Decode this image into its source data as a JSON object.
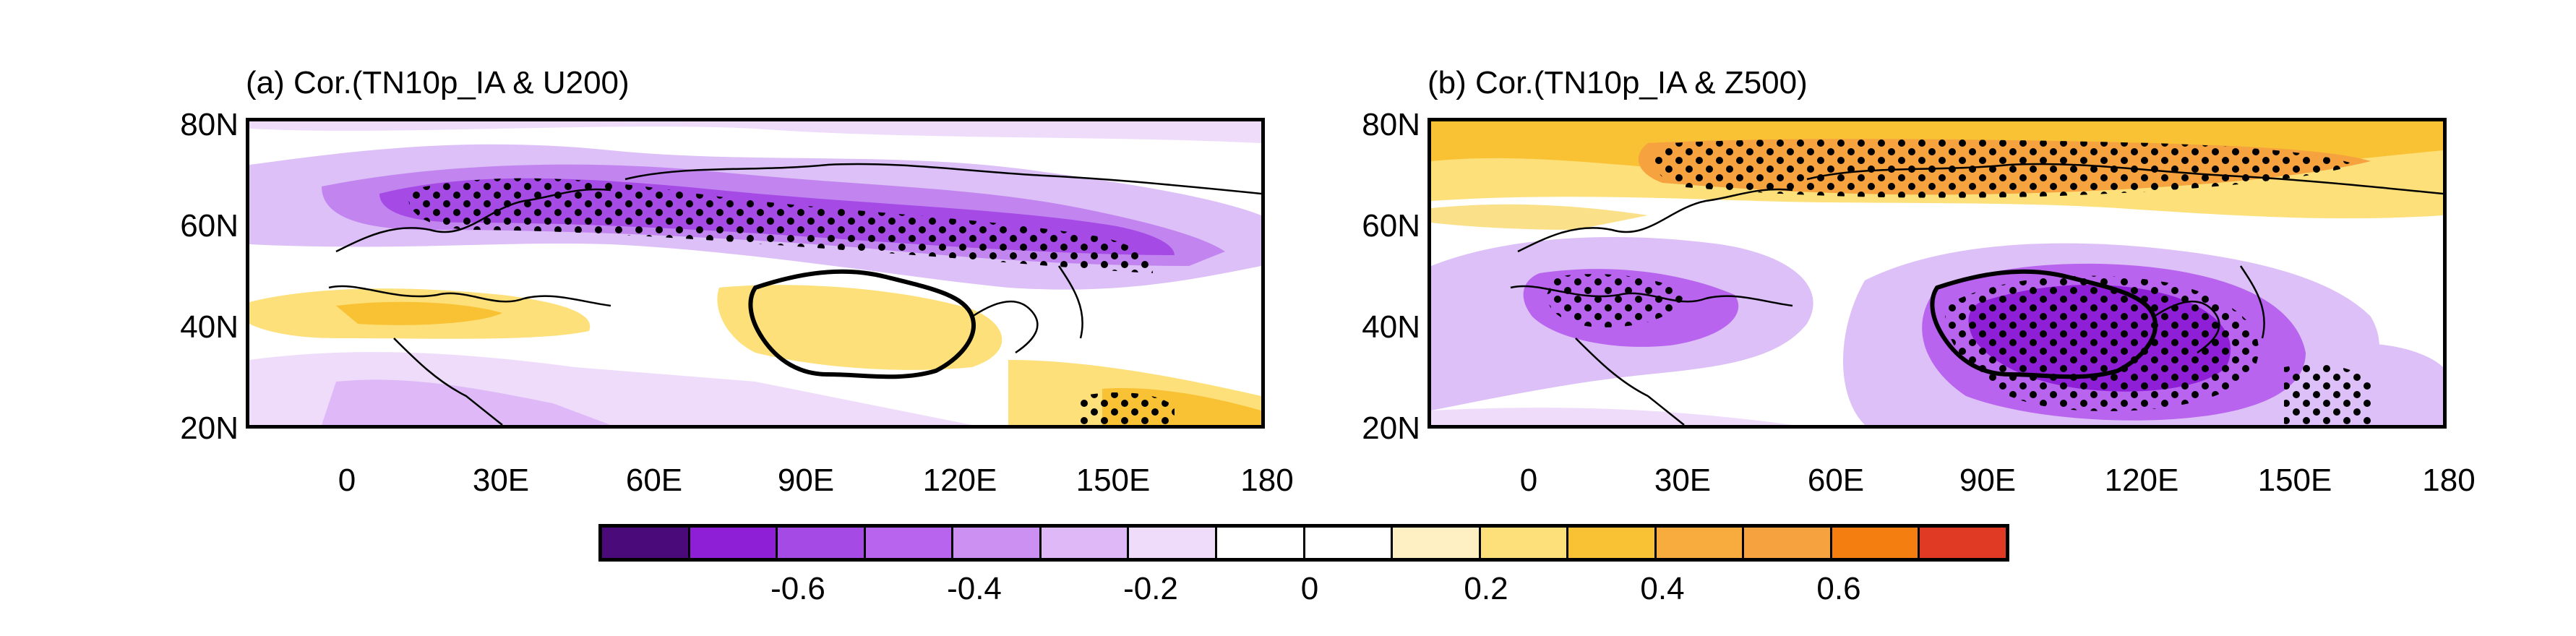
{
  "panels": [
    {
      "id": "a",
      "title": "(a) Cor.(TN10p_IA & U200)"
    },
    {
      "id": "b",
      "title": "(b) Cor.(TN10p_IA & Z500)"
    }
  ],
  "y_ticks": [
    "80N",
    "60N",
    "40N",
    "20N"
  ],
  "x_ticks_a": [
    "0",
    "30E",
    "60E",
    "90E",
    "120E",
    "150E",
    "180"
  ],
  "x_ticks_b": [
    "0",
    "30E",
    "60E",
    "90E",
    "120E",
    "150E",
    "180"
  ],
  "colorbar": {
    "colors": [
      "#4b0a7a",
      "#8e1fd6",
      "#a64ae6",
      "#b864ee",
      "#cc8ff2",
      "#dfb8f7",
      "#efdcfb",
      "#ffffff",
      "#ffffff",
      "#fff0c4",
      "#fde07a",
      "#f9c234",
      "#f7ac3d",
      "#f5a23f",
      "#f47f10",
      "#e03a25"
    ],
    "labels": [
      "-0.6",
      "-0.4",
      "-0.2",
      "0",
      "0.2",
      "0.4",
      "0.6"
    ]
  },
  "colors": {
    "purple_strong": "#9a2fe0",
    "purple_mid": "#b972ee",
    "purple_light": "#dcc0f7",
    "orange_strong": "#f2b52e",
    "orange_light": "#fbe08a"
  }
}
